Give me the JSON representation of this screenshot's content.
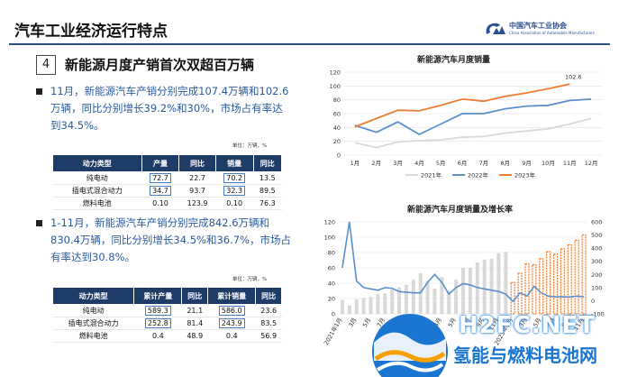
{
  "header": {
    "title": "汽车工业经济运行特点",
    "logo_cn": "中国汽车工业协会",
    "logo_en": "China Association of Automobile Manufacturers"
  },
  "section": {
    "number": "4",
    "title": "新能源月度产销首次双超百万辆"
  },
  "bullets": [
    "11月，新能源汽车产销分别完成107.4万辆和102.6万辆，同比分别增长39.2%和30%，市场占有率达到34.5%。",
    "1-11月，新能源汽车产销分别完成842.6万辆和830.4万辆，同比分别增长34.5%和36.7%，市场占有率达到30.8%。"
  ],
  "unit_label": "单位：万辆，%",
  "table1": {
    "headers": [
      "动力类型",
      "产量",
      "同比",
      "销量",
      "同比"
    ],
    "rows": [
      [
        "纯电动",
        "72.7",
        "22.7",
        "70.2",
        "13.5"
      ],
      [
        "插电式混合动力",
        "34.7",
        "93.7",
        "32.3",
        "89.5"
      ],
      [
        "燃料电池",
        "0.10",
        "123.9",
        "0.10",
        "76.3"
      ]
    ]
  },
  "table2": {
    "headers": [
      "动力类型",
      "累计产量",
      "同比",
      "累计销量",
      "同比"
    ],
    "rows": [
      [
        "纯电动",
        "589.3",
        "21.1",
        "586.0",
        "23.6"
      ],
      [
        "插电式混合动力",
        "252.8",
        "81.4",
        "243.9",
        "83.5"
      ],
      [
        "燃料电池",
        "0.4",
        "48.9",
        "0.4",
        "56.9"
      ]
    ]
  },
  "chart_data": [
    {
      "type": "line",
      "title": "新能源汽车月度销量",
      "categories": [
        "1月",
        "2月",
        "3月",
        "4月",
        "5月",
        "6月",
        "7月",
        "8月",
        "9月",
        "10月",
        "11月",
        "12月"
      ],
      "ylim": [
        0,
        120
      ],
      "yticks": [
        "0",
        "20",
        "40",
        "60",
        "80",
        "100",
        "120"
      ],
      "series": [
        {
          "name": "2021年",
          "color": "#d9d9d9",
          "values": [
            18,
            11,
            19,
            21,
            22,
            26,
            27,
            32,
            35,
            38,
            45,
            53
          ]
        },
        {
          "name": "2022年",
          "color": "#5b8fcd",
          "values": [
            43,
            33,
            48,
            30,
            45,
            60,
            60,
            67,
            71,
            72,
            79,
            81
          ]
        },
        {
          "name": "2023年",
          "color": "#ed7d31",
          "values": [
            41,
            53,
            65,
            64,
            72,
            81,
            78,
            85,
            90,
            96,
            102.6,
            null
          ]
        }
      ],
      "annotation": "102.6"
    },
    {
      "type": "bar",
      "title": "新能源汽车月度销量及增长率",
      "yticks_left": [
        "0",
        "20",
        "40",
        "60",
        "80",
        "100",
        "120"
      ],
      "yticks_right": [
        "-100",
        "0",
        "100",
        "200",
        "300",
        "400",
        "500",
        "600"
      ],
      "x_labels": [
        "2021年1月",
        "3月",
        "5月",
        "7月",
        "9月",
        "11月",
        "2022年1月",
        "3月",
        "5月",
        "7月",
        "9月",
        "11月",
        "2023年1月",
        "3月",
        "5月",
        "7月",
        "9月",
        "11月"
      ],
      "series": [
        {
          "name": "销量",
          "values": [
            18,
            11,
            19,
            21,
            22,
            26,
            27,
            32,
            35,
            38,
            45,
            53,
            43,
            33,
            48,
            30,
            45,
            60,
            60,
            67,
            71,
            72,
            79,
            81,
            41,
            53,
            65,
            64,
            72,
            81,
            78,
            85,
            90,
            96,
            103
          ]
        },
        {
          "name": "增长率",
          "values": [
            250,
            600,
            150,
            100,
            90,
            80,
            100,
            95,
            70,
            65,
            60,
            60,
            140,
            200,
            140,
            50,
            100,
            130,
            120,
            100,
            90,
            80,
            70,
            50,
            -5,
            60,
            35,
            110,
            60,
            35,
            30,
            30,
            28,
            35,
            30
          ]
        }
      ]
    }
  ],
  "watermark": {
    "text_en": "H2FC.NET",
    "text_cn": "氢能与燃料电池网"
  }
}
